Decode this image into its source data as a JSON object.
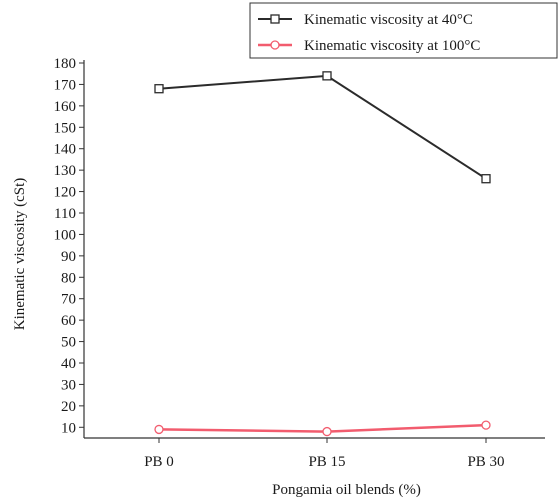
{
  "chart_data": {
    "type": "line",
    "categories": [
      "PB 0",
      "PB 15",
      "PB 30"
    ],
    "series": [
      {
        "name": "Kinematic viscosity at 40°C",
        "values": [
          168,
          174,
          126
        ],
        "color": "#2b2b2b",
        "marker": "square"
      },
      {
        "name": "Kinematic viscosity at 100°C",
        "values": [
          9,
          8,
          11
        ],
        "color": "#f25c6e",
        "marker": "circle"
      }
    ],
    "xlabel": "Pongamia oil blends (%)",
    "ylabel": "Kinematic viscosity (cSt)",
    "ylim": [
      5,
      180
    ],
    "yticks": [
      10,
      20,
      30,
      40,
      50,
      60,
      70,
      80,
      90,
      100,
      110,
      120,
      130,
      140,
      150,
      160,
      170,
      180
    ],
    "grid": false,
    "legend": "top-right"
  }
}
